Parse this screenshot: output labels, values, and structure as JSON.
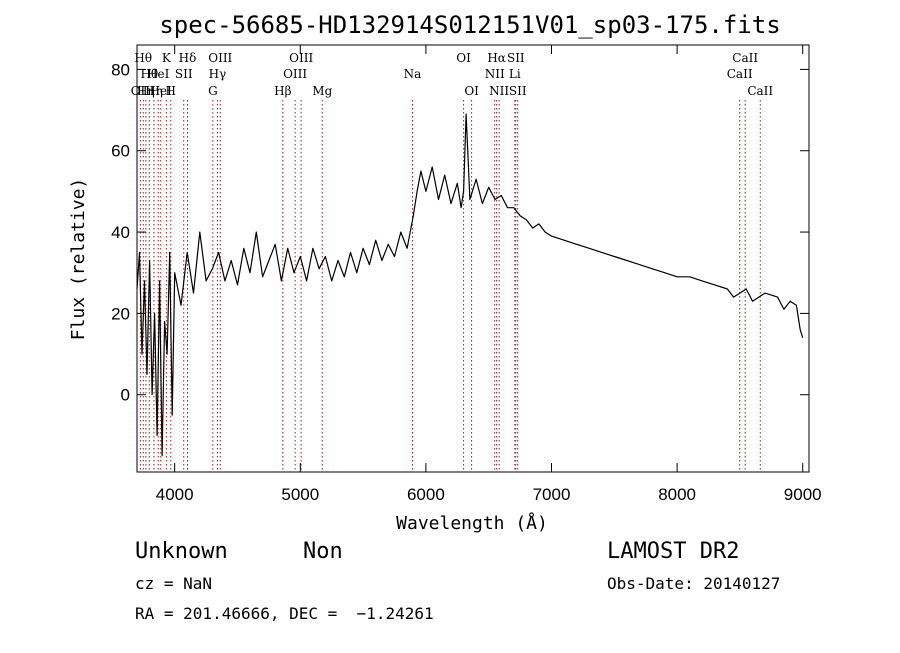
{
  "chart_data": {
    "type": "line",
    "title": "spec-56685-HD132914S012151V01_sp03-175.fits",
    "xlabel": "Wavelength (Å)",
    "ylabel": "Flux (relative)",
    "xlim": [
      3700,
      9050
    ],
    "ylim": [
      -19,
      86
    ],
    "xticks": [
      4000,
      5000,
      6000,
      7000,
      8000,
      9000
    ],
    "yticks": [
      0,
      20,
      40,
      60,
      80
    ],
    "grid": false,
    "series": [
      {
        "color": "#000000",
        "x": [
          3700,
          3720,
          3740,
          3760,
          3780,
          3800,
          3820,
          3840,
          3860,
          3880,
          3900,
          3920,
          3940,
          3960,
          3980,
          4000,
          4050,
          4100,
          4150,
          4200,
          4250,
          4300,
          4350,
          4400,
          4450,
          4500,
          4550,
          4600,
          4650,
          4700,
          4750,
          4800,
          4850,
          4900,
          4950,
          5000,
          5050,
          5100,
          5150,
          5200,
          5250,
          5300,
          5350,
          5400,
          5450,
          5500,
          5550,
          5600,
          5650,
          5700,
          5750,
          5800,
          5850,
          5900,
          5930,
          5960,
          6000,
          6050,
          6100,
          6150,
          6200,
          6250,
          6280,
          6300,
          6320,
          6350,
          6400,
          6450,
          6500,
          6550,
          6600,
          6650,
          6700,
          6750,
          6800,
          6850,
          6900,
          6950,
          7000,
          7100,
          7200,
          7300,
          7400,
          7500,
          7600,
          7700,
          7800,
          7900,
          8000,
          8100,
          8200,
          8300,
          8400,
          8450,
          8500,
          8550,
          8600,
          8700,
          8800,
          8850,
          8900,
          8950,
          8980,
          9000
        ],
        "y": [
          26,
          35,
          10,
          28,
          5,
          33,
          0,
          20,
          -10,
          28,
          -15,
          18,
          10,
          35,
          -5,
          30,
          22,
          35,
          25,
          40,
          28,
          31,
          35,
          28,
          33,
          27,
          36,
          30,
          40,
          29,
          33,
          37,
          28,
          36,
          30,
          34,
          28,
          36,
          31,
          34,
          28,
          33,
          29,
          35,
          30,
          36,
          32,
          38,
          33,
          37,
          34,
          40,
          36,
          44,
          50,
          55,
          50,
          56,
          48,
          54,
          47,
          52,
          46,
          50,
          69,
          48,
          53,
          47,
          51,
          48,
          49,
          46,
          46,
          44,
          43,
          41,
          42,
          40,
          39,
          38,
          37,
          36,
          35,
          34,
          33,
          32,
          31,
          30,
          29,
          29,
          28,
          27,
          26,
          24,
          25,
          26,
          23,
          25,
          24,
          21,
          23,
          22,
          16,
          14
        ]
      }
    ],
    "line_markers": [
      {
        "wavelength": 3727,
        "label": "OII",
        "row": 3
      },
      {
        "wavelength": 3750,
        "label": "Hθ",
        "row": 1
      },
      {
        "wavelength": 3771,
        "label": "Hη",
        "row": 3
      },
      {
        "wavelength": 3798,
        "label": "Hθ",
        "row": 2
      },
      {
        "wavelength": 3835,
        "label": "Hη",
        "row": 3
      },
      {
        "wavelength": 3869,
        "label": "HeI",
        "row": 2
      },
      {
        "wavelength": 3889,
        "label": "HeI",
        "row": 3
      },
      {
        "wavelength": 3934,
        "label": "K",
        "row": 1
      },
      {
        "wavelength": 3969,
        "label": "H",
        "row": 3
      },
      {
        "wavelength": 4072,
        "label": "SII",
        "row": 2
      },
      {
        "wavelength": 4102,
        "label": "Hδ",
        "row": 1
      },
      {
        "wavelength": 4304,
        "label": "G",
        "row": 3
      },
      {
        "wavelength": 4340,
        "label": "Hγ",
        "row": 2
      },
      {
        "wavelength": 4363,
        "label": "OIII",
        "row": 1
      },
      {
        "wavelength": 4861,
        "label": "Hβ",
        "row": 3
      },
      {
        "wavelength": 4959,
        "label": "OIII",
        "row": 2
      },
      {
        "wavelength": 5007,
        "label": "OIII",
        "row": 1
      },
      {
        "wavelength": 5175,
        "label": "Mg",
        "row": 3
      },
      {
        "wavelength": 5893,
        "label": "Na",
        "row": 2
      },
      {
        "wavelength": 6300,
        "label": "OI",
        "row": 1
      },
      {
        "wavelength": 6364,
        "label": "OI",
        "row": 3
      },
      {
        "wavelength": 6548,
        "label": "NII",
        "row": 2
      },
      {
        "wavelength": 6563,
        "label": "Hα",
        "row": 1
      },
      {
        "wavelength": 6583,
        "label": "NII",
        "row": 3
      },
      {
        "wavelength": 6708,
        "label": "Li",
        "row": 2
      },
      {
        "wavelength": 6716,
        "label": "SII",
        "row": 1
      },
      {
        "wavelength": 6731,
        "label": "SII",
        "row": 3
      },
      {
        "wavelength": 8498,
        "label": "CaII",
        "row": 2
      },
      {
        "wavelength": 8542,
        "label": "CaII",
        "row": 1
      },
      {
        "wavelength": 8662,
        "label": "CaII",
        "row": 3
      }
    ]
  },
  "info": {
    "class_label": "Unknown",
    "subclass_label": "Non",
    "survey": "LAMOST DR2",
    "cz": "cz = NaN",
    "obs_date": "Obs-Date: 20140127",
    "coords": "RA = 201.46666, DEC =  −1.24261"
  },
  "colors": {
    "spectrum": "#000000",
    "marker_line": "#a02020"
  }
}
